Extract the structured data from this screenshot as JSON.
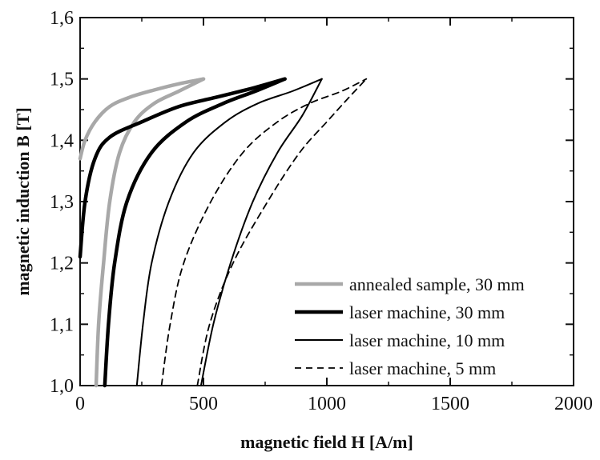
{
  "chart_data": {
    "type": "line",
    "title": "",
    "xlabel": "magnetic field H [A/m]",
    "ylabel": "magnetic induction B [T]",
    "xlim": [
      0,
      2000
    ],
    "ylim": [
      1.0,
      1.6
    ],
    "xticks": [
      0,
      500,
      1000,
      1500,
      2000
    ],
    "yticks": [
      1.0,
      1.1,
      1.2,
      1.3,
      1.4,
      1.5,
      1.6
    ],
    "xtick_labels": [
      "0",
      "500",
      "1000",
      "1500",
      "2000"
    ],
    "ytick_labels": [
      "1,0",
      "1,1",
      "1,2",
      "1,3",
      "1,4",
      "1,5",
      "1,6"
    ],
    "grid": false,
    "legend_position": "bottom-right",
    "series": [
      {
        "name": "annealed sample, 30 mm",
        "color": "#a8a8a8",
        "style": "solid-thick",
        "upper": [
          [
            0,
            1.37
          ],
          [
            20,
            1.4
          ],
          [
            60,
            1.43
          ],
          [
            120,
            1.455
          ],
          [
            200,
            1.47
          ],
          [
            300,
            1.482
          ],
          [
            400,
            1.492
          ],
          [
            500,
            1.5
          ]
        ],
        "lower": [
          [
            65,
            1.0
          ],
          [
            75,
            1.1
          ],
          [
            95,
            1.2
          ],
          [
            120,
            1.3
          ],
          [
            160,
            1.38
          ],
          [
            220,
            1.43
          ],
          [
            300,
            1.46
          ],
          [
            400,
            1.48
          ],
          [
            500,
            1.5
          ]
        ]
      },
      {
        "name": "laser machine, 30 mm",
        "color": "#000000",
        "style": "solid-thick",
        "upper": [
          [
            0,
            1.21
          ],
          [
            20,
            1.3
          ],
          [
            60,
            1.37
          ],
          [
            120,
            1.405
          ],
          [
            250,
            1.43
          ],
          [
            400,
            1.455
          ],
          [
            550,
            1.47
          ],
          [
            700,
            1.485
          ],
          [
            830,
            1.5
          ]
        ],
        "lower": [
          [
            100,
            1.0
          ],
          [
            115,
            1.1
          ],
          [
            140,
            1.2
          ],
          [
            190,
            1.3
          ],
          [
            290,
            1.38
          ],
          [
            430,
            1.43
          ],
          [
            580,
            1.46
          ],
          [
            710,
            1.48
          ],
          [
            830,
            1.5
          ]
        ]
      },
      {
        "name": "laser machine, 10 mm",
        "color": "#000000",
        "style": "solid",
        "upper": [
          [
            230,
            1.0
          ],
          [
            255,
            1.1
          ],
          [
            290,
            1.2
          ],
          [
            360,
            1.3
          ],
          [
            460,
            1.38
          ],
          [
            590,
            1.43
          ],
          [
            720,
            1.46
          ],
          [
            860,
            1.48
          ],
          [
            980,
            1.5
          ]
        ],
        "lower": [
          [
            490,
            1.0
          ],
          [
            540,
            1.1
          ],
          [
            610,
            1.2
          ],
          [
            700,
            1.3
          ],
          [
            800,
            1.38
          ],
          [
            900,
            1.44
          ],
          [
            980,
            1.5
          ]
        ]
      },
      {
        "name": "laser machine, 5 mm",
        "color": "#000000",
        "style": "dashed",
        "upper": [
          [
            330,
            1.0
          ],
          [
            365,
            1.1
          ],
          [
            420,
            1.2
          ],
          [
            530,
            1.3
          ],
          [
            660,
            1.38
          ],
          [
            800,
            1.43
          ],
          [
            930,
            1.46
          ],
          [
            1060,
            1.48
          ],
          [
            1160,
            1.5
          ]
        ],
        "lower": [
          [
            475,
            1.0
          ],
          [
            525,
            1.1
          ],
          [
            620,
            1.2
          ],
          [
            760,
            1.3
          ],
          [
            890,
            1.38
          ],
          [
            1000,
            1.43
          ],
          [
            1090,
            1.47
          ],
          [
            1160,
            1.5
          ]
        ]
      }
    ]
  }
}
